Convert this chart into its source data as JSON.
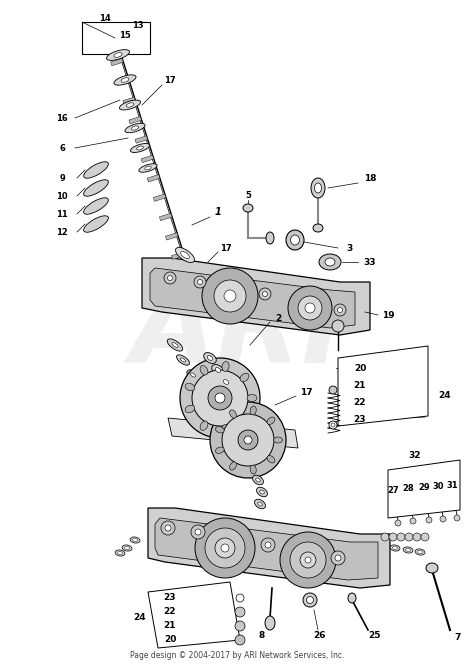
{
  "footer": "Page design © 2004-2017 by ARI Network Services, Inc.",
  "bg_color": "#ffffff",
  "fig_width": 4.74,
  "fig_height": 6.64,
  "dpi": 100,
  "watermark": "ARI",
  "watermark_color": "#d8d8d8"
}
